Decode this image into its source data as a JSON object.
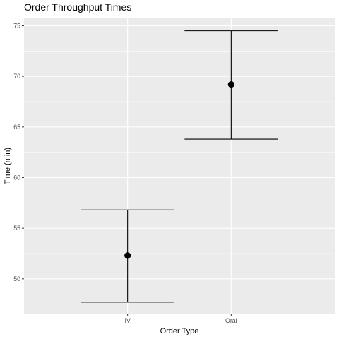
{
  "chart_data": {
    "type": "errorbar",
    "title": "Order Throughput Times",
    "xlabel": "Order Type",
    "ylabel": "Time (min)",
    "categories": [
      "IV",
      "Oral"
    ],
    "points": [
      {
        "category": "IV",
        "mean": 52.3,
        "lower": 47.7,
        "upper": 56.8
      },
      {
        "category": "Oral",
        "mean": 69.2,
        "lower": 63.8,
        "upper": 74.5
      }
    ],
    "ylim": [
      46.5,
      75.8
    ],
    "yticks": [
      50,
      55,
      60,
      65,
      70,
      75
    ],
    "ytick_labels": [
      "50",
      "55",
      "60",
      "65",
      "70",
      "75"
    ],
    "grid": true,
    "colors": {
      "panel": "#ebebeb",
      "grid": "#ffffff",
      "marks": "#000000"
    }
  }
}
